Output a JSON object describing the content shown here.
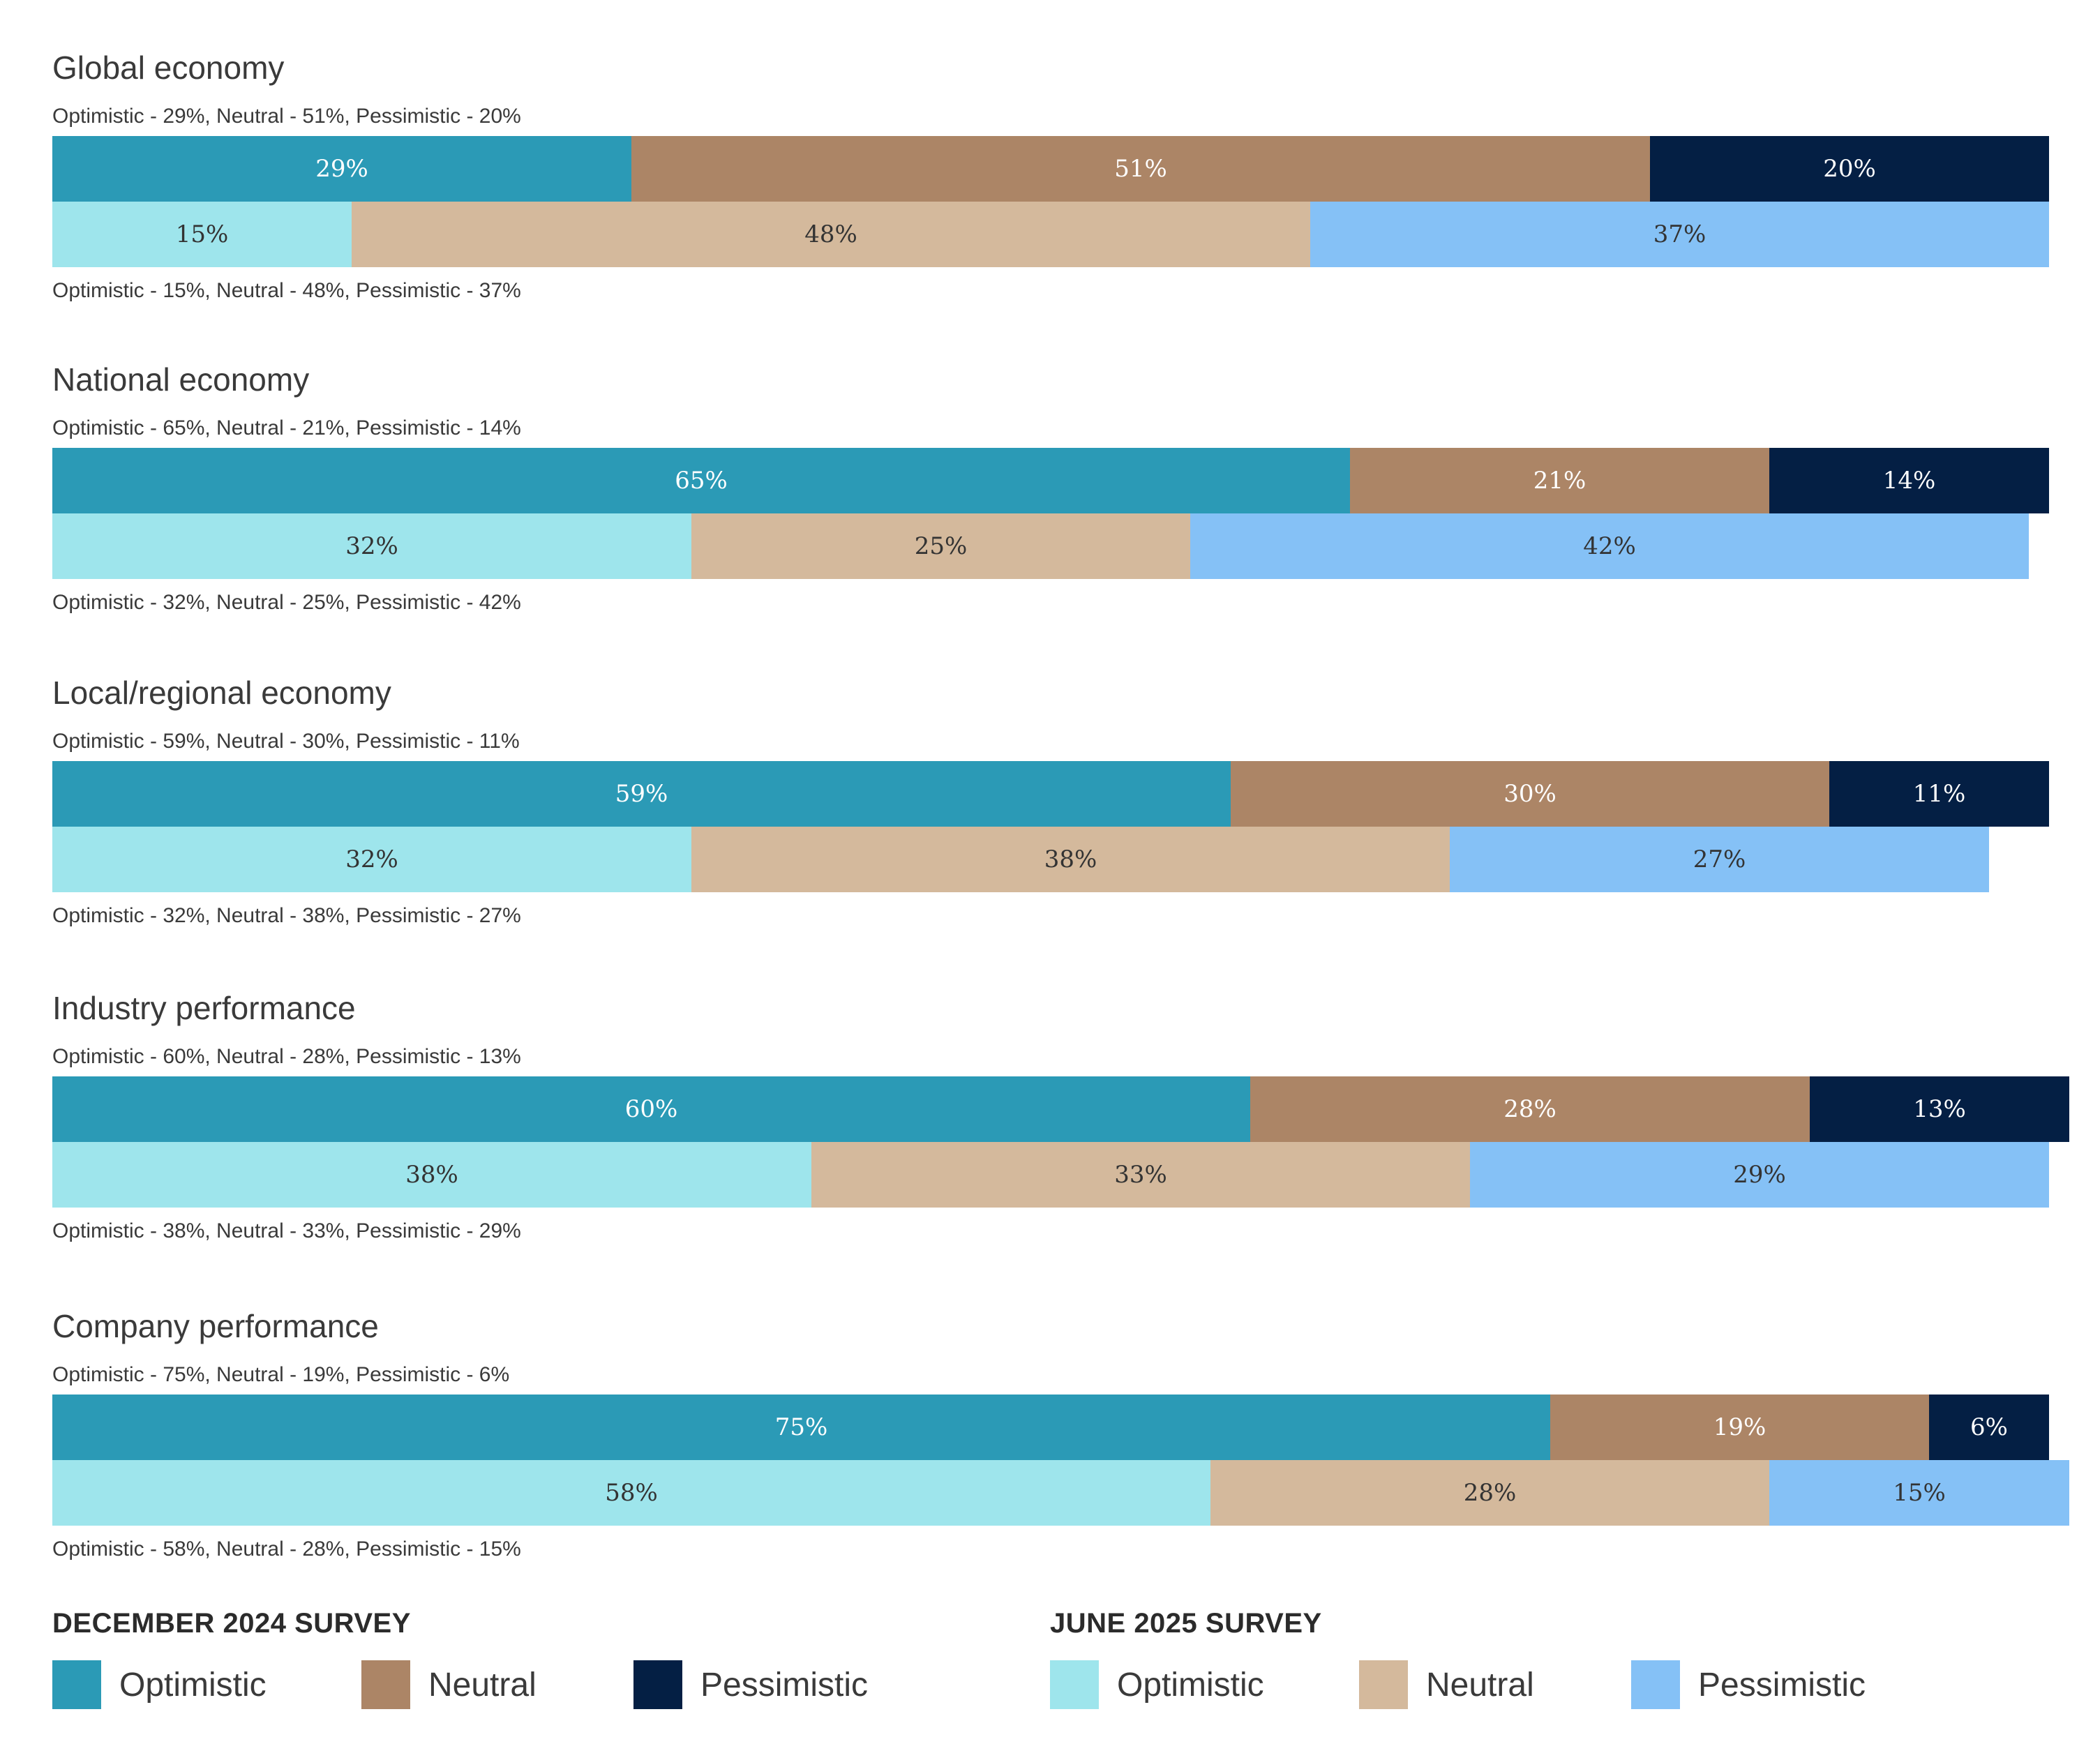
{
  "chart_data": {
    "type": "bar",
    "orientation": "horizontal",
    "stacked": true,
    "categories": [
      "Global economy",
      "National economy",
      "Local/regional economy",
      "Industry performance",
      "Company performance"
    ],
    "surveys": [
      {
        "name": "DECEMBER 2024 SURVEY",
        "series": [
          {
            "name": "Optimistic",
            "values": [
              29,
              65,
              59,
              60,
              75
            ]
          },
          {
            "name": "Neutral",
            "values": [
              51,
              21,
              30,
              28,
              19
            ]
          },
          {
            "name": "Pessimistic",
            "values": [
              20,
              14,
              11,
              13,
              6
            ]
          }
        ]
      },
      {
        "name": "JUNE 2025 SURVEY",
        "series": [
          {
            "name": "Optimistic",
            "values": [
              15,
              32,
              32,
              38,
              58
            ]
          },
          {
            "name": "Neutral",
            "values": [
              48,
              25,
              38,
              33,
              28
            ]
          },
          {
            "name": "Pessimistic",
            "values": [
              37,
              42,
              27,
              29,
              15
            ]
          }
        ]
      }
    ],
    "captions_dec2024": [
      "Optimistic - 29%, Neutral - 51%, Pessimistic - 20%",
      "Optimistic - 65%, Neutral - 21%, Pessimistic - 14%",
      "Optimistic - 59%, Neutral - 30%, Pessimistic - 11%",
      "Optimistic - 60%, Neutral - 28%, Pessimistic - 13%",
      "Optimistic - 75%, Neutral - 19%, Pessimistic - 6%"
    ],
    "captions_jun2025": [
      "Optimistic - 15%, Neutral - 48%, Pessimistic - 37%",
      "Optimistic - 32%, Neutral - 25%, Pessimistic - 42%",
      "Optimistic - 32%, Neutral - 38%, Pessimistic - 27%",
      "Optimistic - 38%, Neutral - 33%, Pessimistic - 29%",
      "Optimistic - 58%, Neutral - 28%, Pessimistic - 15%"
    ],
    "xlim": [
      0,
      100
    ],
    "value_suffix": "%"
  },
  "colors": {
    "dec2024": {
      "Optimistic": "#2b9ab6",
      "Neutral": "#ac8566",
      "Pessimistic": "#041f44"
    },
    "jun2025": {
      "Optimistic": "#9ee5ec",
      "Neutral": "#d4b99c",
      "Pessimistic": "#85c1f6"
    }
  },
  "legend": {
    "dec2024": {
      "heading": "DECEMBER 2024 SURVEY",
      "items": [
        "Optimistic",
        "Neutral",
        "Pessimistic"
      ]
    },
    "jun2025": {
      "heading": "JUNE 2025 SURVEY",
      "items": [
        "Optimistic",
        "Neutral",
        "Pessimistic"
      ]
    }
  }
}
